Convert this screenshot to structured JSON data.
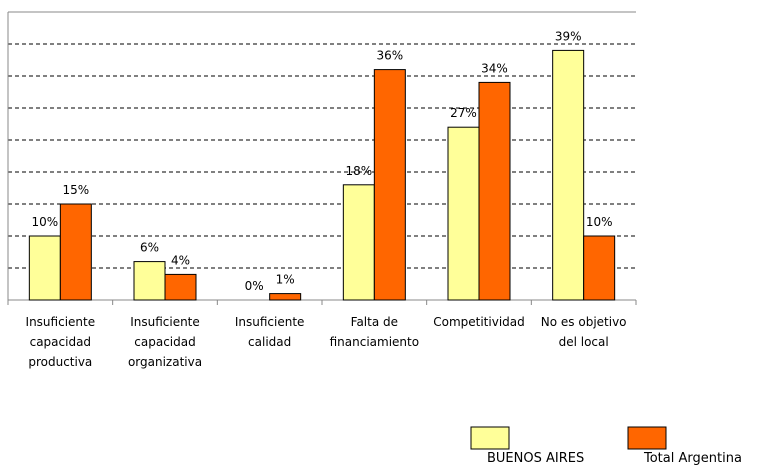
{
  "chart_data": {
    "type": "bar",
    "categories": [
      "Insuficiente\ncapacidad\nproductiva",
      "Insuficiente\ncapacidad\norganizativa",
      "Insuficiente\ncalidad",
      "Falta de\nfinanciamiento",
      "Competitividad",
      "No es objetivo\ndel local"
    ],
    "series": [
      {
        "name": "BUENOS AIRES",
        "color": "#ffff99",
        "values": [
          10,
          6,
          0,
          18,
          27,
          39
        ],
        "value_labels": [
          "10%",
          "6%",
          "0%",
          "18%",
          "27%",
          "39%"
        ]
      },
      {
        "name": "Total Argentina",
        "color": "#ff6600",
        "values": [
          15,
          4,
          1,
          36,
          34,
          10
        ],
        "value_labels": [
          "15%",
          "4%",
          "1%",
          "36%",
          "34%",
          "10%"
        ]
      }
    ],
    "ylim": [
      0,
      45
    ],
    "yticks": [
      0,
      5,
      10,
      15,
      20,
      25,
      30,
      35,
      40,
      45
    ],
    "grid": true
  }
}
